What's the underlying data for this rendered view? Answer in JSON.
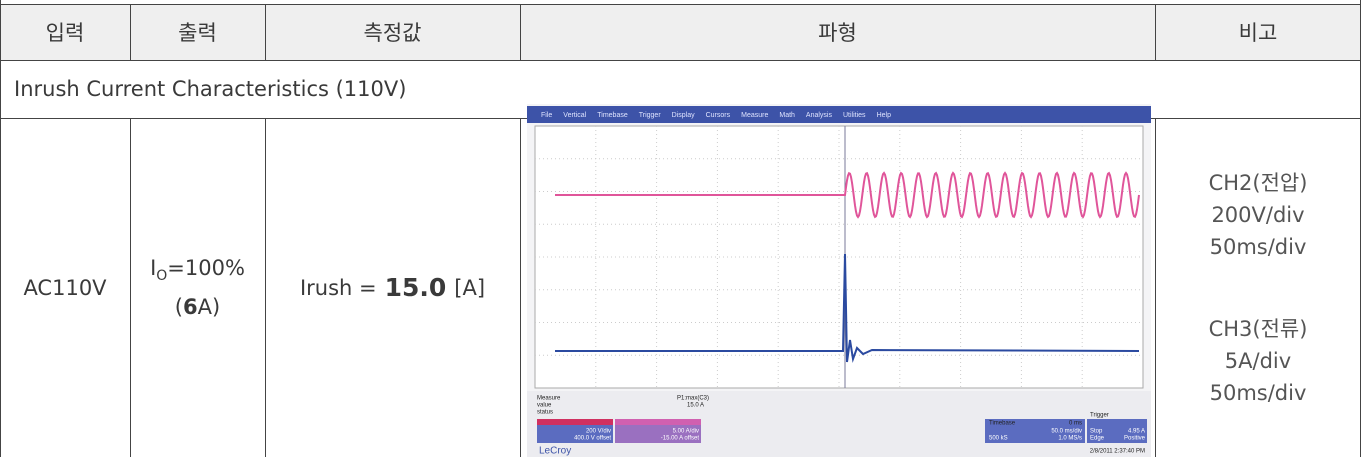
{
  "header": [
    "입력",
    "출력",
    "측정값",
    "파형",
    "비고"
  ],
  "section_title": "Inrush Current Characteristics (110V)",
  "row": {
    "input": "AC110V",
    "output": {
      "symbol": "I",
      "subscript": "O",
      "ratio": "=100%",
      "open": "(",
      "load": "6",
      "close": "A)"
    },
    "measured": {
      "label": "Irush =",
      "value": "15.0",
      "unit": "[A]"
    },
    "remarks": [
      "CH2(전압)",
      "200V/div",
      "50ms/div",
      "CH3(전류)",
      "5A/div",
      "50ms/div"
    ]
  },
  "scope": {
    "menu": [
      "File",
      "Vertical",
      "Timebase",
      "Trigger",
      "Display",
      "Cursors",
      "Measure",
      "Math",
      "Analysis",
      "Utilities",
      "Help"
    ],
    "measure_labels": [
      "Measure",
      "value",
      "status"
    ],
    "measure_param": "P1:max(C3)",
    "measure_value": "15.0 A",
    "ch2": [
      "200 V/div",
      "400.0 V offset"
    ],
    "ch3": [
      "5.00 A/div",
      "-15.00 A offset"
    ],
    "timebase": [
      "Timebase",
      "0 ms",
      "50.0 ms/div",
      "500 kS",
      "1.0 MS/s"
    ],
    "trigger": [
      "Trigger",
      "Stop",
      "4.95 A",
      "Edge",
      "Positive"
    ],
    "brand": "LeCroy",
    "timestamp": "2/8/2011 2:37:40 PM"
  }
}
